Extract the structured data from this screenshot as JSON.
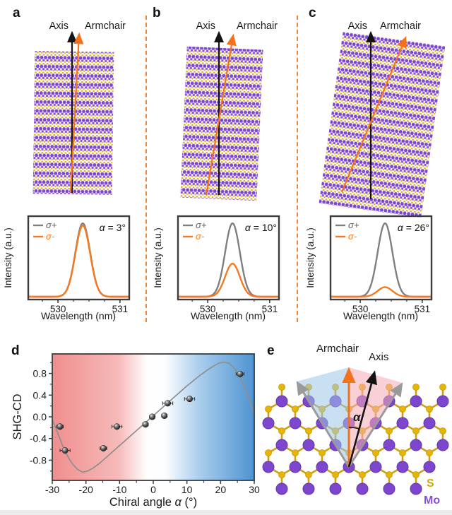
{
  "panel_letters": {
    "a": "a",
    "b": "b",
    "c": "c",
    "d": "d",
    "e": "e"
  },
  "panels_top": {
    "a": {
      "axis": "Axis",
      "armchair": "Armchair"
    },
    "b": {
      "axis": "Axis",
      "armchair": "Armchair"
    },
    "c": {
      "axis": "Axis",
      "armchair": "Armchair"
    }
  },
  "spectra": {
    "ylabel": "Intensity (a.u.)",
    "xlabel": "Wavelength (nm)",
    "alpha_symbol": "α",
    "alpha_rest": {
      "a": " = 3°",
      "b": " = 10°",
      "c": " = 26°"
    }
  },
  "panel_d": {
    "ylabel": "SHG-CD",
    "xlabel_prefix": "Chiral angle ",
    "xlabel_alpha": "α",
    "xlabel_suffix": " (°)"
  },
  "panel_e": {
    "armchair": "Armchair",
    "axis": "Axis",
    "alpha_symbol": "α",
    "legend_s": "S",
    "legend_mo": "Mo"
  },
  "colors": {
    "orange": "#f57921",
    "gray_curve": "#7f7f7f",
    "divider_orange": "#f0863c",
    "mo_purple": "#7d46cf",
    "s_yellow": "#e3b005",
    "red_region": "#f08e8e",
    "blue_region": "#4e93d1",
    "wedge_blue": "#9cc6e8",
    "wedge_pink": "#f5aab6",
    "fit_gray": "#8f8f8f"
  },
  "chart_data": [
    {
      "id": "a",
      "type": "line",
      "alpha_deg": 3,
      "xlabel": "Wavelength (nm)",
      "ylabel": "Intensity (a.u.)",
      "xlim": [
        529.52,
        531.15
      ],
      "xticks": [
        530,
        531
      ],
      "minor_xticks": [
        529.75,
        530.25,
        530.5,
        530.75
      ],
      "peak_center_nm": 530.4,
      "peak_fwhm_nm": 0.28,
      "series": [
        {
          "name": "σ+",
          "color": "#7f7f7f",
          "amplitude": 1.0
        },
        {
          "name": "σ-",
          "color": "#f57921",
          "amplitude": 0.97
        }
      ]
    },
    {
      "id": "b",
      "type": "line",
      "alpha_deg": 10,
      "xlabel": "Wavelength (nm)",
      "ylabel": "Intensity (a.u.)",
      "xlim": [
        529.52,
        531.15
      ],
      "xticks": [
        530,
        531
      ],
      "minor_xticks": [
        529.75,
        530.25,
        530.5,
        530.75
      ],
      "peak_center_nm": 530.4,
      "peak_fwhm_nm": 0.28,
      "series": [
        {
          "name": "σ+",
          "color": "#7f7f7f",
          "amplitude": 1.0
        },
        {
          "name": "σ-",
          "color": "#f57921",
          "amplitude": 0.45
        }
      ]
    },
    {
      "id": "c",
      "type": "line",
      "alpha_deg": 26,
      "xlabel": "Wavelength (nm)",
      "ylabel": "Intensity (a.u.)",
      "xlim": [
        529.52,
        531.15
      ],
      "xticks": [
        530,
        531
      ],
      "minor_xticks": [
        529.75,
        530.25,
        530.5,
        530.75
      ],
      "peak_center_nm": 530.4,
      "peak_fwhm_nm": 0.28,
      "series": [
        {
          "name": "σ+",
          "color": "#7f7f7f",
          "amplitude": 1.0
        },
        {
          "name": "σ-",
          "color": "#f57921",
          "amplitude": 0.13
        }
      ]
    },
    {
      "id": "d",
      "type": "scatter",
      "xlabel": "Chiral angle α (°)",
      "ylabel": "SHG-CD",
      "xlim": [
        -30,
        30
      ],
      "ylim": [
        -1.16,
        1.16
      ],
      "xticks": [
        -30,
        -20,
        -10,
        0,
        10,
        20,
        30
      ],
      "minor_xticks": [
        -25,
        -15,
        -5,
        5,
        15,
        25
      ],
      "yticks": [
        {
          "v": 0.8,
          "label": "0.8"
        },
        {
          "v": 0.4,
          "label": "0.4"
        },
        {
          "v": 0,
          "label": "0.0"
        },
        {
          "v": -0.4,
          "label": "-0.4"
        },
        {
          "v": -0.8,
          "label": "-0.8"
        }
      ],
      "minor_yticks": [
        1.0,
        0.6,
        0.2,
        -0.2,
        -0.6,
        -1.0
      ],
      "points": [
        {
          "x": -27.7,
          "y": -0.18,
          "xerr": 1.0
        },
        {
          "x": -26.2,
          "y": -0.62,
          "xerr": 1.5
        },
        {
          "x": -14.8,
          "y": -0.58,
          "xerr": 1.0
        },
        {
          "x": -10.8,
          "y": -0.18,
          "xerr": 1.5
        },
        {
          "x": -2.3,
          "y": -0.14,
          "xerr": 0.8
        },
        {
          "x": -0.3,
          "y": 0.0,
          "xerr": 0.8
        },
        {
          "x": 3.3,
          "y": 0.02,
          "xerr": 0.8
        },
        {
          "x": 4.3,
          "y": 0.25,
          "xerr": 1.5
        },
        {
          "x": 10.8,
          "y": 0.33,
          "xerr": 1.5
        },
        {
          "x": 25.8,
          "y": 0.79,
          "xerr": 1.2
        }
      ],
      "fit_curve": [
        [
          -30,
          -0.05
        ],
        [
          -28.5,
          -0.28
        ],
        [
          -27,
          -0.52
        ],
        [
          -25.5,
          -0.72
        ],
        [
          -24,
          -0.87
        ],
        [
          -22.5,
          -0.97
        ],
        [
          -21,
          -1.02
        ],
        [
          -19.5,
          -1.0
        ],
        [
          -18,
          -0.95
        ],
        [
          -16,
          -0.86
        ],
        [
          -14,
          -0.75
        ],
        [
          -12,
          -0.64
        ],
        [
          -10,
          -0.53
        ],
        [
          -8,
          -0.42
        ],
        [
          -6,
          -0.31
        ],
        [
          -4,
          -0.2
        ],
        [
          -2,
          -0.09
        ],
        [
          0,
          0.02
        ],
        [
          2,
          0.13
        ],
        [
          4,
          0.24
        ],
        [
          6,
          0.35
        ],
        [
          8,
          0.46
        ],
        [
          10,
          0.57
        ],
        [
          12,
          0.67
        ],
        [
          14,
          0.77
        ],
        [
          16,
          0.86
        ],
        [
          18,
          0.94
        ],
        [
          19.5,
          0.99
        ],
        [
          21,
          1.01
        ],
        [
          22.5,
          0.99
        ],
        [
          24,
          0.9
        ],
        [
          25.5,
          0.77
        ],
        [
          27,
          0.57
        ],
        [
          28.5,
          0.32
        ],
        [
          30,
          0.04
        ]
      ],
      "background_gradient": {
        "left": "#f08e8e",
        "center": "#ffffff",
        "right": "#4e93d1"
      },
      "point_color": "#2b2b2b",
      "curve_color": "#8f8f8f"
    }
  ]
}
